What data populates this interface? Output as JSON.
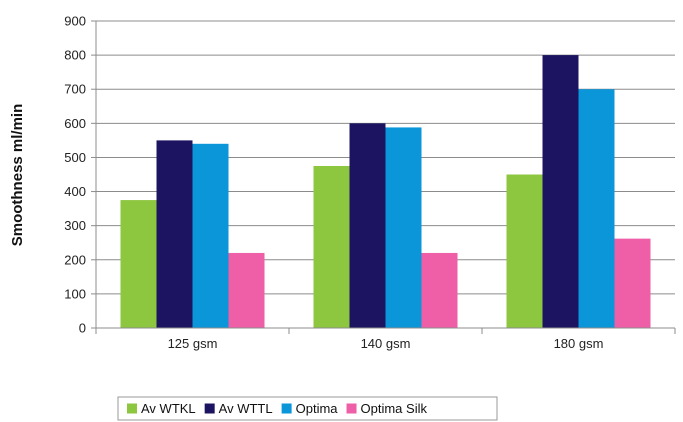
{
  "chart_data": {
    "type": "bar",
    "title": "",
    "xlabel": "",
    "ylabel": "Smoothness ml/min",
    "ylim": [
      0,
      900
    ],
    "yticks": [
      "0",
      "100",
      "200",
      "300",
      "400",
      "500",
      "600",
      "700",
      "800",
      "900"
    ],
    "categories": [
      "125 gsm",
      "140 gsm",
      "180 gsm"
    ],
    "series": [
      {
        "name": "Av WTKL",
        "color": "#8dc63f",
        "values": [
          375,
          475,
          450
        ]
      },
      {
        "name": "Av WTTL",
        "color": "#1c1460",
        "values": [
          550,
          600,
          800
        ]
      },
      {
        "name": "Optima",
        "color": "#0a96d9",
        "values": [
          540,
          588,
          700
        ]
      },
      {
        "name": "Optima Silk",
        "color": "#ee5fa7",
        "values": [
          220,
          220,
          262
        ]
      }
    ],
    "grid": true,
    "legend_position": "bottom"
  }
}
